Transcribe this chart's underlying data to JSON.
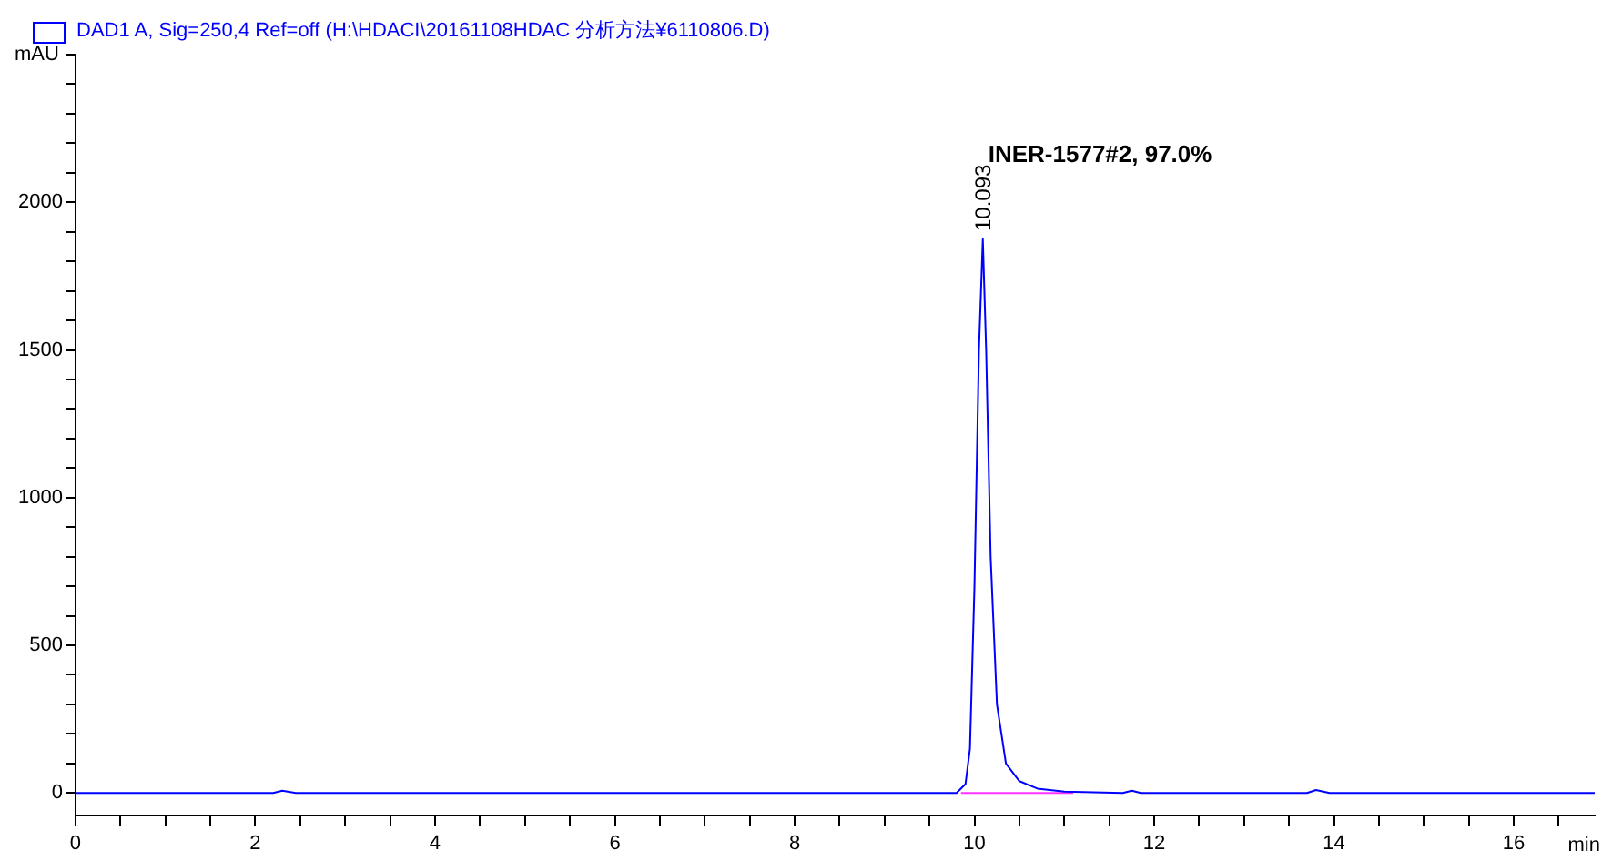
{
  "chart_data": {
    "type": "line",
    "xlabel": "min",
    "ylabel": "mAU",
    "xlim": [
      0,
      16.9
    ],
    "ylim": [
      -75,
      2500
    ],
    "xticks": [
      0,
      {
        "value": 0.5,
        "label": null
      },
      {
        "value": 1,
        "label": null
      },
      {
        "value": 1.5,
        "label": null
      },
      2,
      {
        "value": 2.5,
        "label": null
      },
      {
        "value": 3,
        "label": null
      },
      {
        "value": 3.5,
        "label": null
      },
      4,
      {
        "value": 4.5,
        "label": null
      },
      {
        "value": 5,
        "label": null
      },
      {
        "value": 5.5,
        "label": null
      },
      6,
      {
        "value": 6.5,
        "label": null
      },
      {
        "value": 7,
        "label": null
      },
      {
        "value": 7.5,
        "label": null
      },
      8,
      {
        "value": 8.5,
        "label": null
      },
      {
        "value": 9,
        "label": null
      },
      {
        "value": 9.5,
        "label": null
      },
      10,
      {
        "value": 10.5,
        "label": null
      },
      {
        "value": 11,
        "label": null
      },
      {
        "value": 11.5,
        "label": null
      },
      12,
      {
        "value": 12.5,
        "label": null
      },
      {
        "value": 13,
        "label": null
      },
      {
        "value": 13.5,
        "label": null
      },
      14,
      {
        "value": 14.5,
        "label": null
      },
      {
        "value": 15,
        "label": null
      },
      {
        "value": 15.5,
        "label": null
      },
      16,
      {
        "value": 16.5,
        "label": null
      }
    ],
    "yticks": [
      0,
      {
        "value": 100,
        "label": null
      },
      {
        "value": 200,
        "label": null
      },
      {
        "value": 300,
        "label": null
      },
      {
        "value": 400,
        "label": null
      },
      500,
      {
        "value": 600,
        "label": null
      },
      {
        "value": 700,
        "label": null
      },
      {
        "value": 800,
        "label": null
      },
      {
        "value": 900,
        "label": null
      },
      1000,
      {
        "value": 1100,
        "label": null
      },
      {
        "value": 1200,
        "label": null
      },
      {
        "value": 1300,
        "label": null
      },
      {
        "value": 1400,
        "label": null
      },
      1500,
      {
        "value": 1600,
        "label": null
      },
      {
        "value": 1700,
        "label": null
      },
      {
        "value": 1800,
        "label": null
      },
      {
        "value": 1900,
        "label": null
      },
      2000,
      {
        "value": 2100,
        "label": null
      },
      {
        "value": 2200,
        "label": null
      },
      {
        "value": 2300,
        "label": null
      },
      {
        "value": 2400,
        "label": null
      },
      {
        "value": 2500,
        "label": null
      }
    ],
    "grid": false,
    "legend": "top left",
    "marker": "none",
    "line_style": "solid",
    "series": [
      {
        "name": "DAD1 A, Sig=250,4 Ref=off (H:\\HDACI\\20161108HDAC 分析方法¥6110806.D)",
        "color": "#0000ff",
        "x": [
          0,
          2.2,
          2.3,
          2.45,
          9.8,
          9.9,
          9.95,
          10.0,
          10.05,
          10.093,
          10.13,
          10.18,
          10.25,
          10.35,
          10.5,
          10.7,
          11.0,
          11.65,
          11.75,
          11.85,
          13.7,
          13.8,
          13.95,
          16.9
        ],
        "values": [
          0,
          0,
          8,
          0,
          0,
          30,
          150,
          700,
          1500,
          1875,
          1500,
          800,
          300,
          100,
          40,
          15,
          5,
          0,
          8,
          0,
          0,
          10,
          0,
          0
        ]
      },
      {
        "color": "#ff33ff",
        "x": [
          9.85,
          11.1
        ],
        "values": [
          0,
          0
        ]
      }
    ],
    "annotations": [
      {
        "text": "10.093",
        "x": 10.093,
        "y": 1875
      },
      "INER-1577#2, 97.0%"
    ]
  }
}
